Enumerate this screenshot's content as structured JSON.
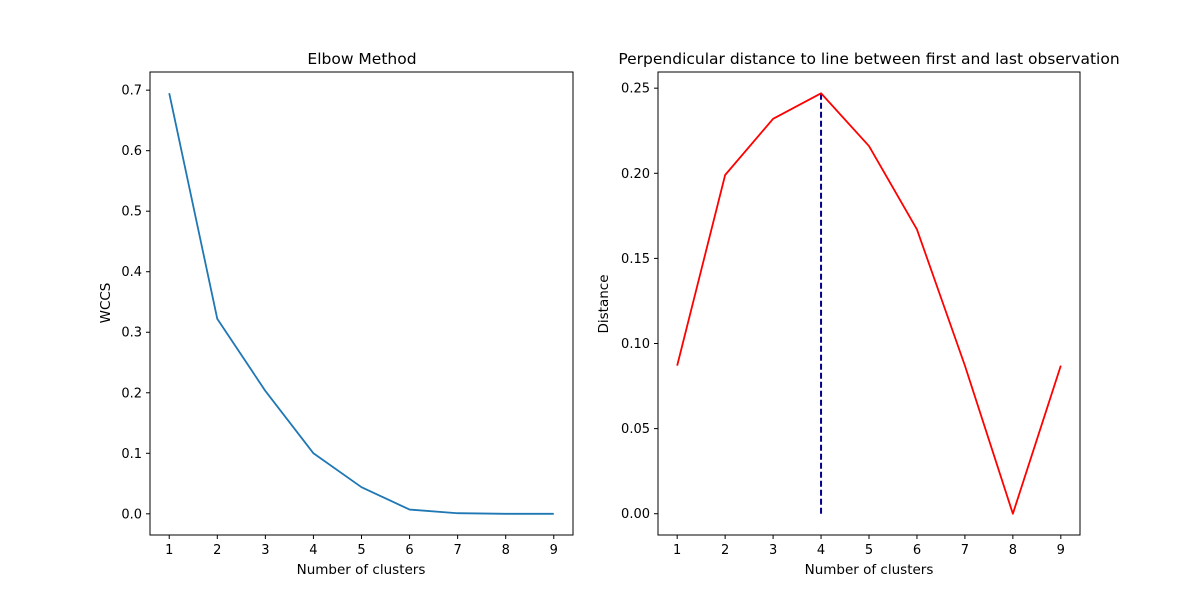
{
  "chart_data": [
    {
      "type": "line",
      "title": "Elbow Method",
      "xlabel": "Number of clusters",
      "ylabel": "WCCS",
      "x": [
        1,
        2,
        3,
        4,
        5,
        6,
        7,
        8,
        9
      ],
      "xticks": [
        "1",
        "2",
        "3",
        "4",
        "5",
        "6",
        "7",
        "8",
        "9"
      ],
      "yticks": [
        "0.0",
        "0.1",
        "0.2",
        "0.3",
        "0.4",
        "0.5",
        "0.6",
        "0.7"
      ],
      "ytick_values": [
        0.0,
        0.1,
        0.2,
        0.3,
        0.4,
        0.5,
        0.6,
        0.7
      ],
      "xlim": [
        0.6,
        9.4
      ],
      "ylim": [
        -0.035,
        0.73
      ],
      "grid": false,
      "series": [
        {
          "values": [
            0.695,
            0.322,
            0.203,
            0.1,
            0.044,
            0.007,
            0.001,
            0.0,
            0.0
          ],
          "color": "#1f77b4"
        }
      ]
    },
    {
      "type": "line",
      "title": "Perpendicular distance to line between first and last observation",
      "xlabel": "Number of clusters",
      "ylabel": "Distance",
      "x": [
        1,
        2,
        3,
        4,
        5,
        6,
        7,
        8,
        9
      ],
      "xticks": [
        "1",
        "2",
        "3",
        "4",
        "5",
        "6",
        "7",
        "8",
        "9"
      ],
      "yticks": [
        "0.00",
        "0.05",
        "0.10",
        "0.15",
        "0.20",
        "0.25"
      ],
      "ytick_values": [
        0.0,
        0.05,
        0.1,
        0.15,
        0.2,
        0.25
      ],
      "xlim": [
        0.6,
        9.4
      ],
      "ylim": [
        -0.0125,
        0.2595
      ],
      "grid": false,
      "series": [
        {
          "values": [
            0.087,
            0.199,
            0.232,
            0.247,
            0.216,
            0.167,
            0.087,
            0.0,
            0.087
          ],
          "color": "#ff0000"
        }
      ],
      "vline": {
        "x": 4,
        "y_from": 0.0,
        "y_to": 0.247,
        "color": "#00008b",
        "style": "dashed"
      }
    }
  ]
}
